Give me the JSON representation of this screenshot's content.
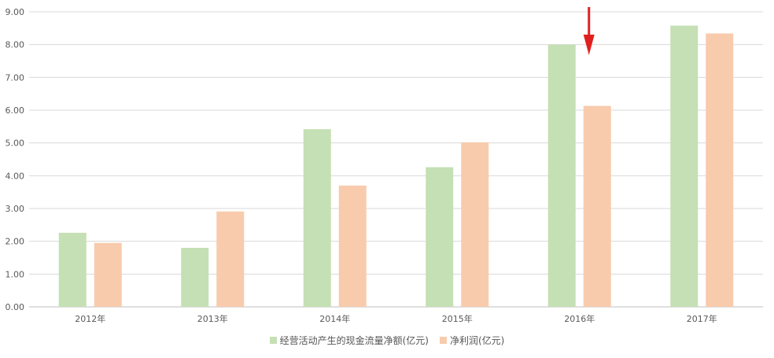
{
  "chart_data": {
    "type": "bar",
    "categories": [
      "2012年",
      "2013年",
      "2014年",
      "2015年",
      "2016年",
      "2017年"
    ],
    "series": [
      {
        "name": "经营活动产生的现金流量净额(亿元)",
        "color": "#c5e0b4",
        "values": [
          2.26,
          1.8,
          5.42,
          4.26,
          8.0,
          8.58
        ]
      },
      {
        "name": "净利润(亿元)",
        "color": "#f8cbad",
        "values": [
          1.95,
          2.91,
          3.7,
          5.02,
          6.13,
          8.34
        ]
      }
    ],
    "y_ticks": [
      "0.00",
      "1.00",
      "2.00",
      "3.00",
      "4.00",
      "5.00",
      "6.00",
      "7.00",
      "8.00",
      "9.00"
    ],
    "ylim": [
      0,
      9
    ],
    "grid": true,
    "legend_position": "bottom",
    "annotation": {
      "type": "arrow",
      "color": "#e02020",
      "target_category": "2016年"
    }
  }
}
